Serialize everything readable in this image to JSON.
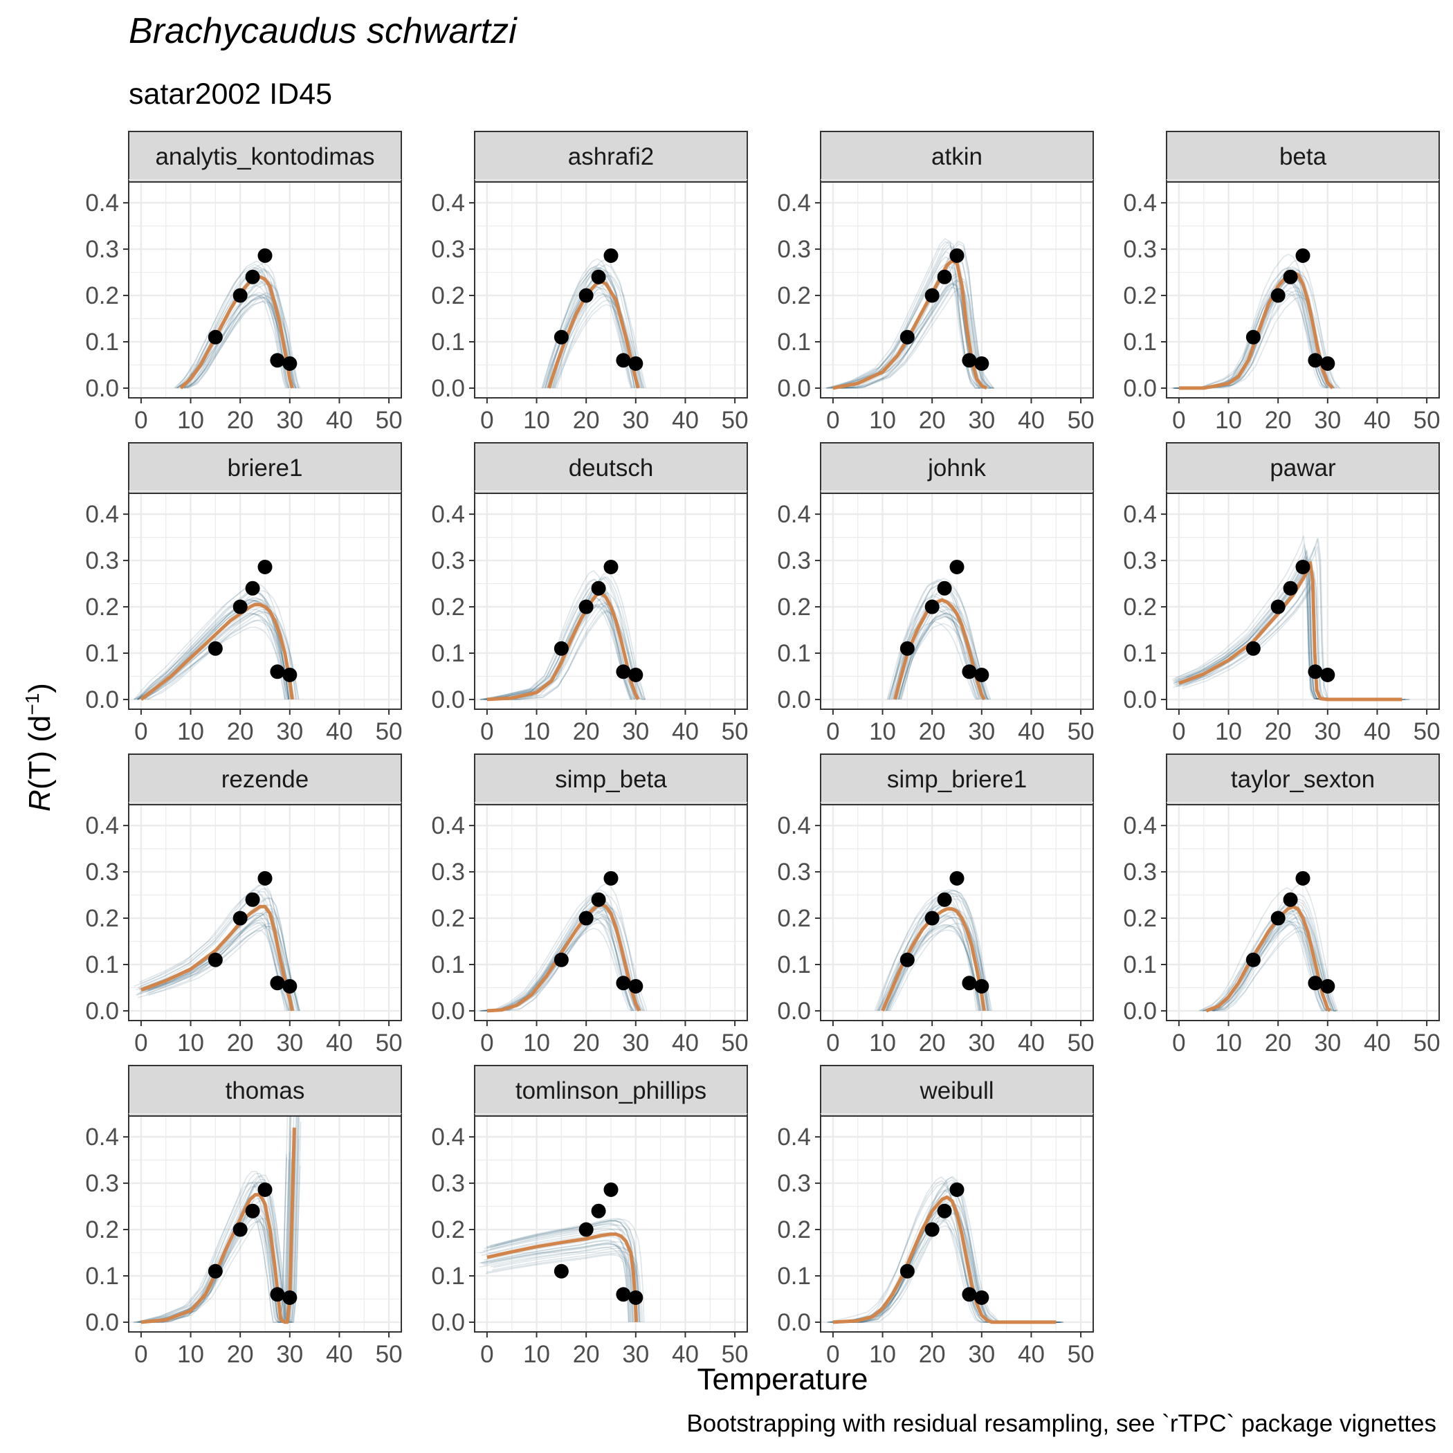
{
  "figure": {
    "title": "Brachycaudus schwartzi",
    "subtitle": "satar2002 ID45",
    "xlabel": "Temperature",
    "ylabel_main": "R",
    "ylabel_rest": "(T) (d",
    "ylabel_sup": "−1",
    "ylabel_close": ")",
    "caption": "Bootstrapping with residual resampling, see `rTPC` package vignettes"
  },
  "colors": {
    "fit": "#d1854b",
    "bootstrap": "#1f5870",
    "points": "#000000",
    "strip_bg": "#d9d9d9",
    "grid": "#ebebeb",
    "panel_border": "#333333"
  },
  "chart_data": {
    "type": "line",
    "facets": "4x4 grid, 15 panels",
    "x_axis": {
      "lim": [
        0,
        50
      ],
      "ticks": [
        0,
        10,
        20,
        30,
        40,
        50
      ],
      "tick_labels": [
        "0",
        "10",
        "20",
        "30",
        "40",
        "50"
      ]
    },
    "y_axis": {
      "lim": [
        0,
        0.42
      ],
      "ticks": [
        0,
        0.1,
        0.2,
        0.3,
        0.4
      ],
      "tick_labels": [
        "0.0",
        "0.1",
        "0.2",
        "0.3",
        "0.4"
      ]
    },
    "grid": true,
    "observed": {
      "x": [
        15,
        20,
        22.5,
        25,
        27.5,
        30
      ],
      "y": [
        0.11,
        0.2,
        0.24,
        0.286,
        0.06,
        0.053
      ]
    },
    "panels": [
      {
        "name": "analytis_kontodimas",
        "fit": [
          [
            8,
            0
          ],
          [
            10,
            0.02
          ],
          [
            12,
            0.05
          ],
          [
            15,
            0.11
          ],
          [
            18,
            0.17
          ],
          [
            20,
            0.205
          ],
          [
            22,
            0.23
          ],
          [
            24,
            0.24
          ],
          [
            25,
            0.235
          ],
          [
            26,
            0.22
          ],
          [
            28,
            0.14
          ],
          [
            29,
            0.08
          ],
          [
            30,
            0.02
          ],
          [
            30.5,
            0
          ]
        ]
      },
      {
        "name": "ashrafi2",
        "fit": [
          [
            12.5,
            0
          ],
          [
            14,
            0.05
          ],
          [
            16,
            0.11
          ],
          [
            18,
            0.16
          ],
          [
            20,
            0.2
          ],
          [
            22,
            0.225
          ],
          [
            23,
            0.23
          ],
          [
            24,
            0.225
          ],
          [
            26,
            0.19
          ],
          [
            28,
            0.11
          ],
          [
            29,
            0.065
          ],
          [
            30,
            0.02
          ],
          [
            30.5,
            0
          ]
        ]
      },
      {
        "name": "atkin",
        "fit": [
          [
            0,
            0
          ],
          [
            5,
            0.01
          ],
          [
            10,
            0.035
          ],
          [
            13,
            0.07
          ],
          [
            15,
            0.105
          ],
          [
            18,
            0.165
          ],
          [
            20,
            0.205
          ],
          [
            22,
            0.245
          ],
          [
            23,
            0.265
          ],
          [
            24,
            0.275
          ],
          [
            25,
            0.27
          ],
          [
            26,
            0.22
          ],
          [
            27,
            0.13
          ],
          [
            28,
            0.06
          ],
          [
            29,
            0.02
          ],
          [
            30,
            0.005
          ],
          [
            31,
            0
          ]
        ]
      },
      {
        "name": "beta",
        "fit": [
          [
            0,
            0
          ],
          [
            5,
            0
          ],
          [
            10,
            0.01
          ],
          [
            12,
            0.025
          ],
          [
            14,
            0.06
          ],
          [
            16,
            0.12
          ],
          [
            18,
            0.18
          ],
          [
            20,
            0.22
          ],
          [
            22,
            0.245
          ],
          [
            23,
            0.25
          ],
          [
            24,
            0.245
          ],
          [
            25,
            0.225
          ],
          [
            26,
            0.19
          ],
          [
            27,
            0.14
          ],
          [
            28,
            0.085
          ],
          [
            29,
            0.04
          ],
          [
            30,
            0.012
          ],
          [
            31,
            0
          ]
        ]
      },
      {
        "name": "briere1",
        "fit": [
          [
            0,
            0
          ],
          [
            3,
            0.025
          ],
          [
            6,
            0.05
          ],
          [
            9,
            0.08
          ],
          [
            12,
            0.11
          ],
          [
            15,
            0.14
          ],
          [
            18,
            0.17
          ],
          [
            20,
            0.185
          ],
          [
            22,
            0.2
          ],
          [
            23,
            0.205
          ],
          [
            24,
            0.205
          ],
          [
            25,
            0.2
          ],
          [
            26,
            0.19
          ],
          [
            27,
            0.17
          ],
          [
            28,
            0.14
          ],
          [
            29,
            0.1
          ],
          [
            30,
            0.04
          ],
          [
            30.5,
            0
          ]
        ]
      },
      {
        "name": "deutsch",
        "fit": [
          [
            0,
            0
          ],
          [
            5,
            0.003
          ],
          [
            10,
            0.015
          ],
          [
            13,
            0.04
          ],
          [
            15,
            0.08
          ],
          [
            17,
            0.13
          ],
          [
            19,
            0.175
          ],
          [
            21,
            0.21
          ],
          [
            22,
            0.225
          ],
          [
            23,
            0.23
          ],
          [
            24,
            0.22
          ],
          [
            25,
            0.2
          ],
          [
            26,
            0.17
          ],
          [
            27,
            0.13
          ],
          [
            28,
            0.085
          ],
          [
            29,
            0.04
          ],
          [
            30,
            0.01
          ],
          [
            30.5,
            0
          ]
        ]
      },
      {
        "name": "johnk",
        "fit": [
          [
            12.5,
            0
          ],
          [
            14,
            0.06
          ],
          [
            15,
            0.1
          ],
          [
            17,
            0.15
          ],
          [
            19,
            0.19
          ],
          [
            20,
            0.205
          ],
          [
            21,
            0.21
          ],
          [
            22,
            0.215
          ],
          [
            23,
            0.21
          ],
          [
            24,
            0.2
          ],
          [
            25,
            0.185
          ],
          [
            26,
            0.16
          ],
          [
            27,
            0.125
          ],
          [
            28,
            0.085
          ],
          [
            29,
            0.045
          ],
          [
            30,
            0.01
          ],
          [
            30.5,
            0
          ]
        ]
      },
      {
        "name": "pawar",
        "fit": [
          [
            0,
            0.035
          ],
          [
            5,
            0.055
          ],
          [
            10,
            0.085
          ],
          [
            15,
            0.125
          ],
          [
            20,
            0.185
          ],
          [
            23,
            0.225
          ],
          [
            25,
            0.26
          ],
          [
            26,
            0.28
          ],
          [
            26.5,
            0.295
          ],
          [
            27,
            0.255
          ],
          [
            27.4,
            0.1
          ],
          [
            27.8,
            0.02
          ],
          [
            28.5,
            0.002
          ],
          [
            30,
            0
          ],
          [
            45,
            0
          ]
        ]
      },
      {
        "name": "rezende",
        "fit": [
          [
            0,
            0.045
          ],
          [
            5,
            0.065
          ],
          [
            10,
            0.09
          ],
          [
            15,
            0.13
          ],
          [
            18,
            0.165
          ],
          [
            20,
            0.19
          ],
          [
            22,
            0.21
          ],
          [
            24,
            0.225
          ],
          [
            25,
            0.225
          ],
          [
            26,
            0.21
          ],
          [
            27,
            0.17
          ],
          [
            28,
            0.115
          ],
          [
            29,
            0.065
          ],
          [
            30,
            0.025
          ],
          [
            30.5,
            0
          ]
        ]
      },
      {
        "name": "simp_beta",
        "fit": [
          [
            0,
            0
          ],
          [
            3,
            0.002
          ],
          [
            6,
            0.012
          ],
          [
            9,
            0.035
          ],
          [
            12,
            0.075
          ],
          [
            15,
            0.125
          ],
          [
            18,
            0.175
          ],
          [
            20,
            0.205
          ],
          [
            22,
            0.225
          ],
          [
            23,
            0.23
          ],
          [
            24,
            0.225
          ],
          [
            25,
            0.21
          ],
          [
            26,
            0.18
          ],
          [
            27,
            0.14
          ],
          [
            28,
            0.095
          ],
          [
            29,
            0.05
          ],
          [
            30,
            0.015
          ],
          [
            30.7,
            0
          ]
        ]
      },
      {
        "name": "simp_briere1",
        "fit": [
          [
            10,
            0
          ],
          [
            12,
            0.05
          ],
          [
            14,
            0.1
          ],
          [
            16,
            0.14
          ],
          [
            18,
            0.175
          ],
          [
            20,
            0.2
          ],
          [
            22,
            0.215
          ],
          [
            23,
            0.22
          ],
          [
            24,
            0.22
          ],
          [
            25,
            0.215
          ],
          [
            26,
            0.2
          ],
          [
            27,
            0.175
          ],
          [
            28,
            0.14
          ],
          [
            29,
            0.09
          ],
          [
            30,
            0.035
          ],
          [
            30.5,
            0
          ]
        ]
      },
      {
        "name": "taylor_sexton",
        "fit": [
          [
            5.5,
            0
          ],
          [
            8,
            0.01
          ],
          [
            10,
            0.03
          ],
          [
            12,
            0.06
          ],
          [
            14,
            0.1
          ],
          [
            16,
            0.135
          ],
          [
            18,
            0.17
          ],
          [
            20,
            0.2
          ],
          [
            22,
            0.22
          ],
          [
            23,
            0.225
          ],
          [
            24,
            0.22
          ],
          [
            25,
            0.2
          ],
          [
            26,
            0.17
          ],
          [
            27,
            0.125
          ],
          [
            28,
            0.08
          ],
          [
            29,
            0.035
          ],
          [
            30,
            0.005
          ],
          [
            30.5,
            0
          ]
        ]
      },
      {
        "name": "thomas",
        "fit": [
          [
            0,
            0
          ],
          [
            5,
            0.005
          ],
          [
            10,
            0.025
          ],
          [
            13,
            0.06
          ],
          [
            15,
            0.105
          ],
          [
            17,
            0.155
          ],
          [
            19,
            0.2
          ],
          [
            21,
            0.245
          ],
          [
            22,
            0.265
          ],
          [
            23,
            0.275
          ],
          [
            24,
            0.275
          ],
          [
            25,
            0.255
          ],
          [
            26,
            0.2
          ],
          [
            27,
            0.12
          ],
          [
            27.8,
            0.04
          ],
          [
            28.2,
            0.005
          ],
          [
            29,
            0
          ],
          [
            29.5,
            0
          ],
          [
            30,
            0.05
          ],
          [
            30.5,
            0.25
          ],
          [
            30.9,
            0.42
          ]
        ]
      },
      {
        "name": "tomlinson_phillips",
        "fit": [
          [
            0,
            0.14
          ],
          [
            5,
            0.152
          ],
          [
            10,
            0.163
          ],
          [
            15,
            0.172
          ],
          [
            20,
            0.18
          ],
          [
            23,
            0.187
          ],
          [
            25,
            0.19
          ],
          [
            26,
            0.19
          ],
          [
            27,
            0.186
          ],
          [
            28,
            0.175
          ],
          [
            29,
            0.15
          ],
          [
            29.5,
            0.11
          ],
          [
            29.9,
            0.05
          ],
          [
            30.1,
            0
          ]
        ]
      },
      {
        "name": "weibull",
        "fit": [
          [
            0,
            0
          ],
          [
            5,
            0.003
          ],
          [
            8,
            0.012
          ],
          [
            10,
            0.03
          ],
          [
            12,
            0.06
          ],
          [
            14,
            0.1
          ],
          [
            16,
            0.15
          ],
          [
            18,
            0.2
          ],
          [
            20,
            0.24
          ],
          [
            22,
            0.265
          ],
          [
            23,
            0.27
          ],
          [
            24,
            0.262
          ],
          [
            25,
            0.235
          ],
          [
            26,
            0.19
          ],
          [
            27,
            0.135
          ],
          [
            28,
            0.08
          ],
          [
            29,
            0.04
          ],
          [
            30,
            0.015
          ],
          [
            31,
            0.005
          ],
          [
            32,
            0
          ],
          [
            45,
            0
          ]
        ]
      }
    ]
  }
}
